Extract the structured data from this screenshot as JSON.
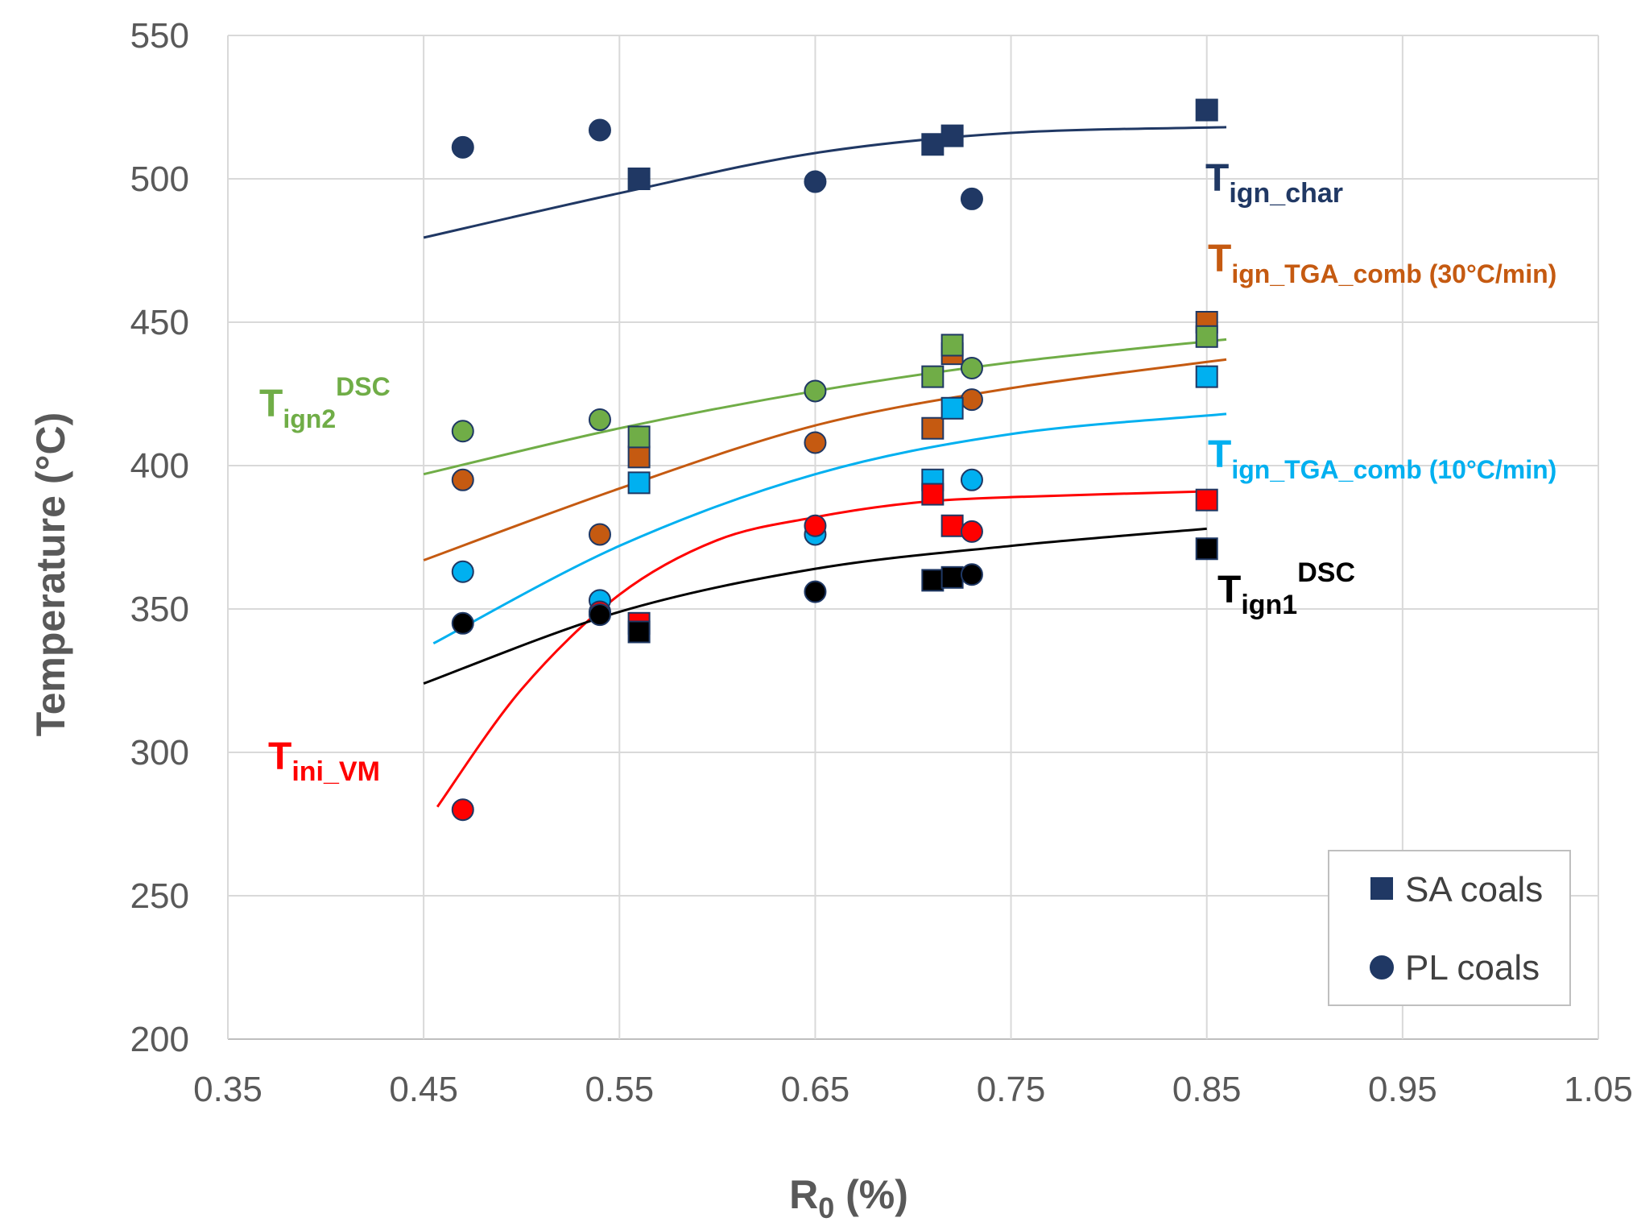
{
  "chart_data": {
    "type": "scatter",
    "xlabel": "R",
    "xlabel_sub": "0",
    "xlabel_suffix": " (%)",
    "ylabel": "Temperature  (°C)",
    "xlim": [
      0.35,
      1.05
    ],
    "ylim": [
      200,
      550
    ],
    "x_ticks": [
      0.35,
      0.45,
      0.55,
      0.65,
      0.75,
      0.85,
      0.95,
      1.05
    ],
    "x_tick_labels": [
      "0.35",
      "0.45",
      "0.55",
      "0.65",
      "0.75",
      "0.85",
      "0.95",
      "1.05"
    ],
    "y_ticks": [
      200,
      250,
      300,
      350,
      400,
      450,
      500,
      550
    ],
    "y_tick_labels": [
      "200",
      "250",
      "300",
      "350",
      "400",
      "450",
      "500",
      "550"
    ],
    "grid": true,
    "legend": {
      "position": "bottom-right",
      "entries": [
        {
          "marker": "square",
          "label": "SA coals",
          "color": "#203864"
        },
        {
          "marker": "circle",
          "label": "PL coals",
          "color": "#203864"
        }
      ]
    },
    "series": [
      {
        "name": "Tign_char",
        "label_main": "T",
        "label_sub": "ign_char",
        "label_sup": "",
        "color": "#203864",
        "label_color": "#203864",
        "sa_points": [
          [
            0.56,
            500
          ],
          [
            0.71,
            512
          ],
          [
            0.72,
            515
          ],
          [
            0.85,
            524
          ]
        ],
        "pl_points": [
          [
            0.47,
            511
          ],
          [
            0.54,
            517
          ],
          [
            0.65,
            499
          ],
          [
            0.73,
            493
          ]
        ],
        "trend": [
          [
            0.45,
            479.5
          ],
          [
            0.55,
            495
          ],
          [
            0.65,
            509
          ],
          [
            0.75,
            516
          ],
          [
            0.86,
            518
          ]
        ]
      },
      {
        "name": "Tign_TGA_comb (30°C/min)",
        "label_main": "T",
        "label_sub": "ign_TGA_comb (30°C/min)",
        "label_sup": "",
        "color": "#C55A11",
        "label_color": "#C55A11",
        "sa_points": [
          [
            0.56,
            403
          ],
          [
            0.71,
            413
          ],
          [
            0.72,
            439
          ],
          [
            0.85,
            450
          ]
        ],
        "pl_points": [
          [
            0.47,
            395
          ],
          [
            0.54,
            376
          ],
          [
            0.65,
            408
          ],
          [
            0.73,
            423
          ]
        ],
        "trend": [
          [
            0.45,
            367
          ],
          [
            0.55,
            392
          ],
          [
            0.65,
            414
          ],
          [
            0.75,
            427
          ],
          [
            0.86,
            437
          ]
        ]
      },
      {
        "name": "Tign2 DSC",
        "label_main": "T",
        "label_sub": "ign2",
        "label_sup": "DSC",
        "color": "#70AD47",
        "label_color": "#70AD47",
        "sa_points": [
          [
            0.56,
            410
          ],
          [
            0.71,
            431
          ],
          [
            0.72,
            442
          ],
          [
            0.85,
            445
          ]
        ],
        "pl_points": [
          [
            0.47,
            412
          ],
          [
            0.54,
            416
          ],
          [
            0.65,
            426
          ],
          [
            0.73,
            434
          ]
        ],
        "trend": [
          [
            0.45,
            397
          ],
          [
            0.55,
            413
          ],
          [
            0.65,
            426
          ],
          [
            0.75,
            436
          ],
          [
            0.86,
            444
          ]
        ]
      },
      {
        "name": "Tign_TGA_comb (10°C/min)",
        "label_main": "T",
        "label_sub": "ign_TGA_comb (10°C/min)",
        "label_sup": "",
        "color": "#00B0F0",
        "label_color": "#00B0F0",
        "sa_points": [
          [
            0.56,
            394
          ],
          [
            0.71,
            395
          ],
          [
            0.72,
            420
          ],
          [
            0.85,
            431
          ]
        ],
        "pl_points": [
          [
            0.47,
            363
          ],
          [
            0.54,
            353
          ],
          [
            0.65,
            376
          ],
          [
            0.73,
            395
          ]
        ],
        "trend": [
          [
            0.455,
            338
          ],
          [
            0.55,
            372
          ],
          [
            0.65,
            397
          ],
          [
            0.75,
            411
          ],
          [
            0.86,
            418
          ]
        ]
      },
      {
        "name": "Tini_VM",
        "label_main": "T",
        "label_sub": "ini_VM",
        "label_sup": "",
        "color": "#FF0000",
        "label_color": "#FF0000",
        "sa_points": [
          [
            0.56,
            345
          ],
          [
            0.71,
            390
          ],
          [
            0.72,
            379
          ],
          [
            0.85,
            388
          ]
        ],
        "pl_points": [
          [
            0.47,
            280
          ],
          [
            0.54,
            349
          ],
          [
            0.65,
            379
          ],
          [
            0.73,
            377
          ]
        ],
        "trend": [
          [
            0.457,
            281
          ],
          [
            0.5,
            322
          ],
          [
            0.55,
            355
          ],
          [
            0.6,
            374
          ],
          [
            0.65,
            382
          ],
          [
            0.7,
            387
          ],
          [
            0.75,
            389
          ],
          [
            0.85,
            391
          ]
        ]
      },
      {
        "name": "Tign1 DSC",
        "label_main": "T",
        "label_sub": "ign1",
        "label_sup": "DSC",
        "color": "#000000",
        "label_color": "#000000",
        "sa_points": [
          [
            0.56,
            342
          ],
          [
            0.71,
            360
          ],
          [
            0.72,
            361
          ],
          [
            0.85,
            371
          ]
        ],
        "pl_points": [
          [
            0.47,
            345
          ],
          [
            0.54,
            348
          ],
          [
            0.65,
            356
          ],
          [
            0.73,
            362
          ]
        ],
        "trend": [
          [
            0.45,
            324
          ],
          [
            0.55,
            349
          ],
          [
            0.65,
            364
          ],
          [
            0.75,
            372
          ],
          [
            0.85,
            378
          ]
        ]
      }
    ]
  },
  "colors": {
    "sa_square_edge": "#1F3864",
    "pl_circle_edge": "#1F3864",
    "grid": "#D9D9D9",
    "axis": "#BFBFBF"
  }
}
